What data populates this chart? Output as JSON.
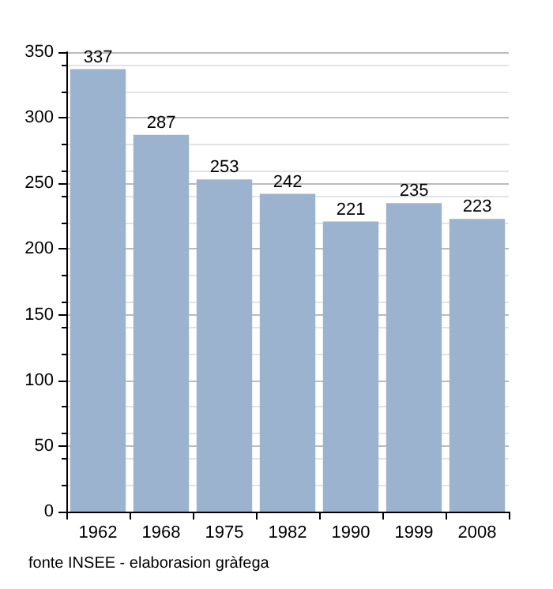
{
  "chart_data": {
    "type": "bar",
    "categories": [
      "1962",
      "1968",
      "1975",
      "1982",
      "1990",
      "1999",
      "2008"
    ],
    "values": [
      337,
      287,
      253,
      242,
      221,
      235,
      223
    ],
    "color": "#9bb3cf",
    "data_labels": true,
    "ylim": [
      0,
      350
    ],
    "yticks": [
      0,
      50,
      100,
      150,
      200,
      250,
      300,
      350
    ],
    "grid": "y",
    "annotations": [
      "fonte INSEE - elaborasion gràfega"
    ]
  }
}
